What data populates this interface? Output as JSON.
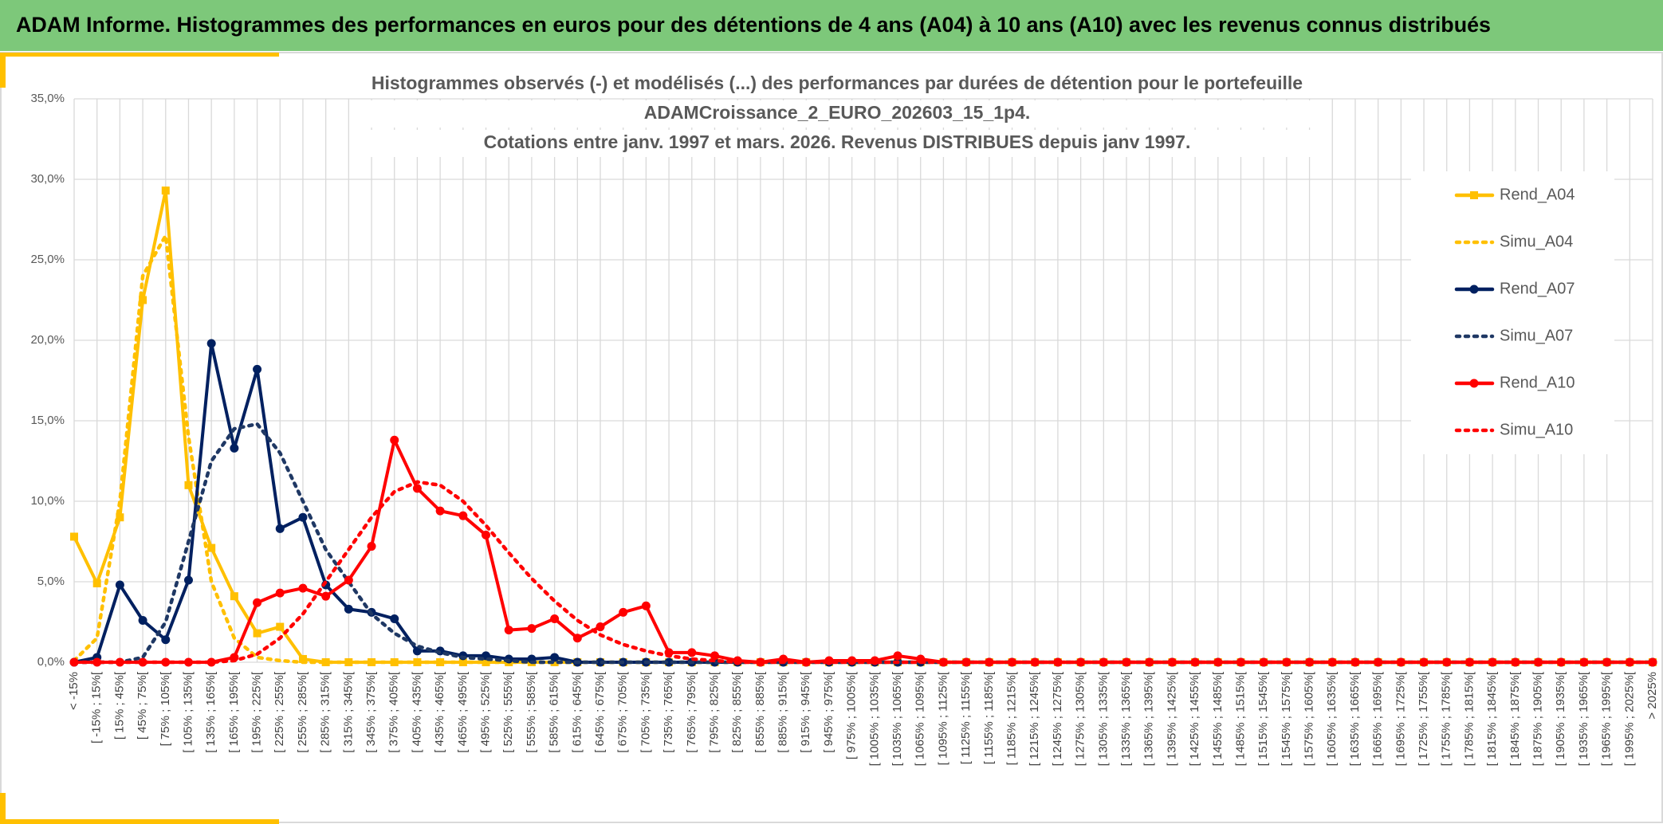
{
  "header": {
    "title": "ADAM Informe. Histogrammes des performances en euros pour des détentions de 4 ans (A04) à 10 ans (A10) avec les revenus connus distribués"
  },
  "chart_data": {
    "type": "line",
    "title": [
      "Histogrammes observés (-) et modélisés (...) des performances par durées de détention pour le portefeuille",
      "ADAMCroissance_2_EURO_202603_15_1p4.",
      "Cotations entre janv. 1997 et mars. 2026. Revenus DISTRIBUES depuis janv 1997."
    ],
    "categories": [
      "< -15%",
      "[ -15% ; 15%[",
      "[ 15% ; 45%[",
      "[ 45% ; 75%[",
      "[ 75% ; 105%[",
      "[ 105% ; 135%[",
      "[ 135% ; 165%[",
      "[ 165% ; 195%[",
      "[ 195% ; 225%[",
      "[ 225% ; 255%[",
      "[ 255% ; 285%[",
      "[ 285% ; 315%[",
      "[ 315% ; 345%[",
      "[ 345% ; 375%[",
      "[ 375% ; 405%[",
      "[ 405% ; 435%[",
      "[ 435% ; 465%[",
      "[ 465% ; 495%[",
      "[ 495% ; 525%[",
      "[ 525% ; 555%[",
      "[ 555% ; 585%[",
      "[ 585% ; 615%[",
      "[ 615% ; 645%[",
      "[ 645% ; 675%[",
      "[ 675% ; 705%[",
      "[ 705% ; 735%[",
      "[ 735% ; 765%[",
      "[ 765% ; 795%[",
      "[ 795% ; 825%[",
      "[ 825% ; 855%[",
      "[ 855% ; 885%[",
      "[ 885% ; 915%[",
      "[ 915% ; 945%[",
      "[ 945% ; 975%[",
      "[ 975% ; 1005%[",
      "[ 1005% ; 1035%[",
      "[ 1035% ; 1065%[",
      "[ 1065% ; 1095%[",
      "[ 1095% ; 1125%[",
      "[ 1125% ; 1155%[",
      "[ 1155% ; 1185%[",
      "[ 1185% ; 1215%[",
      "[ 1215% ; 1245%[",
      "[ 1245% ; 1275%[",
      "[ 1275% ; 1305%[",
      "[ 1305% ; 1335%[",
      "[ 1335% ; 1365%[",
      "[ 1365% ; 1395%[",
      "[ 1395% ; 1425%[",
      "[ 1425% ; 1455%[",
      "[ 1455% ; 1485%[",
      "[ 1485% ; 1515%[",
      "[ 1515% ; 1545%[",
      "[ 1545% ; 1575%[",
      "[ 1575% ; 1605%[",
      "[ 1605% ; 1635%[",
      "[ 1635% ; 1665%[",
      "[ 1665% ; 1695%[",
      "[ 1695% ; 1725%[",
      "[ 1725% ; 1755%[",
      "[ 1755% ; 1785%[",
      "[ 1785% ; 1815%[",
      "[ 1815% ; 1845%[",
      "[ 1845% ; 1875%[",
      "[ 1875% ; 1905%[",
      "[ 1905% ; 1935%[",
      "[ 1935% ; 1965%[",
      "[ 1965% ; 1995%[",
      "[ 1995% ; 2025%[",
      "> 2025%"
    ],
    "series": [
      {
        "name": "Rend_A04",
        "color": "#ffc000",
        "style": "solid",
        "marker": "square",
        "values": [
          7.8,
          4.9,
          9.0,
          22.5,
          29.3,
          11.0,
          7.1,
          4.1,
          1.8,
          2.2,
          0.2,
          0,
          0,
          0,
          0,
          0,
          0,
          0,
          0,
          0,
          0,
          0,
          0,
          0,
          0,
          0,
          0,
          0,
          0,
          0,
          0,
          0,
          0,
          0,
          0,
          0,
          0,
          0,
          0,
          0,
          0,
          0,
          0,
          0,
          0,
          0,
          0,
          0,
          0,
          0,
          0,
          0,
          0,
          0,
          0,
          0,
          0,
          0,
          0,
          0,
          0,
          0,
          0,
          0,
          0,
          0,
          0,
          0,
          0,
          0
        ]
      },
      {
        "name": "Simu_A04",
        "color": "#ffc000",
        "style": "dotted",
        "values": [
          0.1,
          1.5,
          10,
          24,
          26.5,
          14,
          5,
          1.5,
          0.3,
          0.1,
          0,
          0,
          0,
          0,
          0,
          0,
          0,
          0,
          0,
          0,
          0,
          0,
          0,
          0,
          0,
          0,
          0,
          0,
          0,
          0,
          0,
          0,
          0,
          0,
          0,
          0,
          0,
          0,
          0,
          0,
          0,
          0,
          0,
          0,
          0,
          0,
          0,
          0,
          0,
          0,
          0,
          0,
          0,
          0,
          0,
          0,
          0,
          0,
          0,
          0,
          0,
          0,
          0,
          0,
          0,
          0,
          0,
          0,
          0,
          0
        ]
      },
      {
        "name": "Rend_A07",
        "color": "#002060",
        "style": "solid",
        "marker": "circle",
        "values": [
          0,
          0.3,
          4.8,
          2.6,
          1.4,
          5.1,
          19.8,
          13.3,
          18.2,
          8.3,
          9.0,
          4.8,
          3.3,
          3.1,
          2.7,
          0.7,
          0.7,
          0.4,
          0.4,
          0.2,
          0.2,
          0.3,
          0,
          0,
          0,
          0,
          0,
          0,
          0,
          0,
          0,
          0,
          0,
          0,
          0,
          0,
          0,
          0,
          0,
          0,
          0,
          0,
          0,
          0,
          0,
          0,
          0,
          0,
          0,
          0,
          0,
          0,
          0,
          0,
          0,
          0,
          0,
          0,
          0,
          0,
          0,
          0,
          0,
          0,
          0,
          0,
          0,
          0,
          0,
          0
        ]
      },
      {
        "name": "Simu_A07",
        "color": "#1f3864",
        "style": "dotted",
        "values": [
          0,
          0,
          0,
          0.3,
          2.5,
          7.5,
          12.5,
          14.5,
          14.8,
          13,
          10,
          7,
          5,
          3,
          1.8,
          1,
          0.6,
          0.3,
          0.2,
          0.1,
          0,
          0,
          0,
          0,
          0,
          0,
          0,
          0,
          0,
          0,
          0,
          0,
          0,
          0,
          0,
          0,
          0,
          0,
          0,
          0,
          0,
          0,
          0,
          0,
          0,
          0,
          0,
          0,
          0,
          0,
          0,
          0,
          0,
          0,
          0,
          0,
          0,
          0,
          0,
          0,
          0,
          0,
          0,
          0,
          0,
          0,
          0,
          0,
          0,
          0
        ]
      },
      {
        "name": "Rend_A10",
        "color": "#ff0000",
        "style": "solid",
        "marker": "circle",
        "values": [
          0,
          0,
          0,
          0,
          0,
          0,
          0,
          0.3,
          3.7,
          4.3,
          4.6,
          4.1,
          5.1,
          7.2,
          13.8,
          10.8,
          9.4,
          9.1,
          7.9,
          2.0,
          2.1,
          2.7,
          1.5,
          2.2,
          3.1,
          3.5,
          0.6,
          0.6,
          0.4,
          0.1,
          0,
          0.2,
          0,
          0.1,
          0.1,
          0.1,
          0.4,
          0.2,
          0,
          0,
          0,
          0,
          0,
          0,
          0,
          0,
          0,
          0,
          0,
          0,
          0,
          0,
          0,
          0,
          0,
          0,
          0,
          0,
          0,
          0,
          0,
          0,
          0,
          0,
          0,
          0,
          0,
          0,
          0,
          0
        ]
      },
      {
        "name": "Simu_A10",
        "color": "#ff0000",
        "style": "dotted",
        "values": [
          0,
          0,
          0,
          0,
          0,
          0,
          0,
          0.1,
          0.5,
          1.5,
          3,
          5,
          7,
          9,
          10.6,
          11.2,
          11,
          10,
          8.5,
          6.8,
          5.2,
          3.8,
          2.6,
          1.7,
          1.1,
          0.7,
          0.4,
          0.2,
          0.1,
          0,
          0,
          0,
          0,
          0,
          0,
          0,
          0,
          0,
          0,
          0,
          0,
          0,
          0,
          0,
          0,
          0,
          0,
          0,
          0,
          0,
          0,
          0,
          0,
          0,
          0,
          0,
          0,
          0,
          0,
          0,
          0,
          0,
          0,
          0,
          0,
          0,
          0,
          0,
          0,
          0
        ]
      }
    ],
    "ylim": [
      0,
      35
    ],
    "yticks": [
      {
        "value": 0,
        "label": "0,0%"
      },
      {
        "value": 5,
        "label": "5,0%"
      },
      {
        "value": 10,
        "label": "10,0%"
      },
      {
        "value": 15,
        "label": "15,0%"
      },
      {
        "value": 20,
        "label": "20,0%"
      },
      {
        "value": 25,
        "label": "25,0%"
      },
      {
        "value": 30,
        "label": "30,0%"
      },
      {
        "value": 35,
        "label": "35,0%"
      }
    ],
    "grid": true,
    "legend": "right"
  }
}
